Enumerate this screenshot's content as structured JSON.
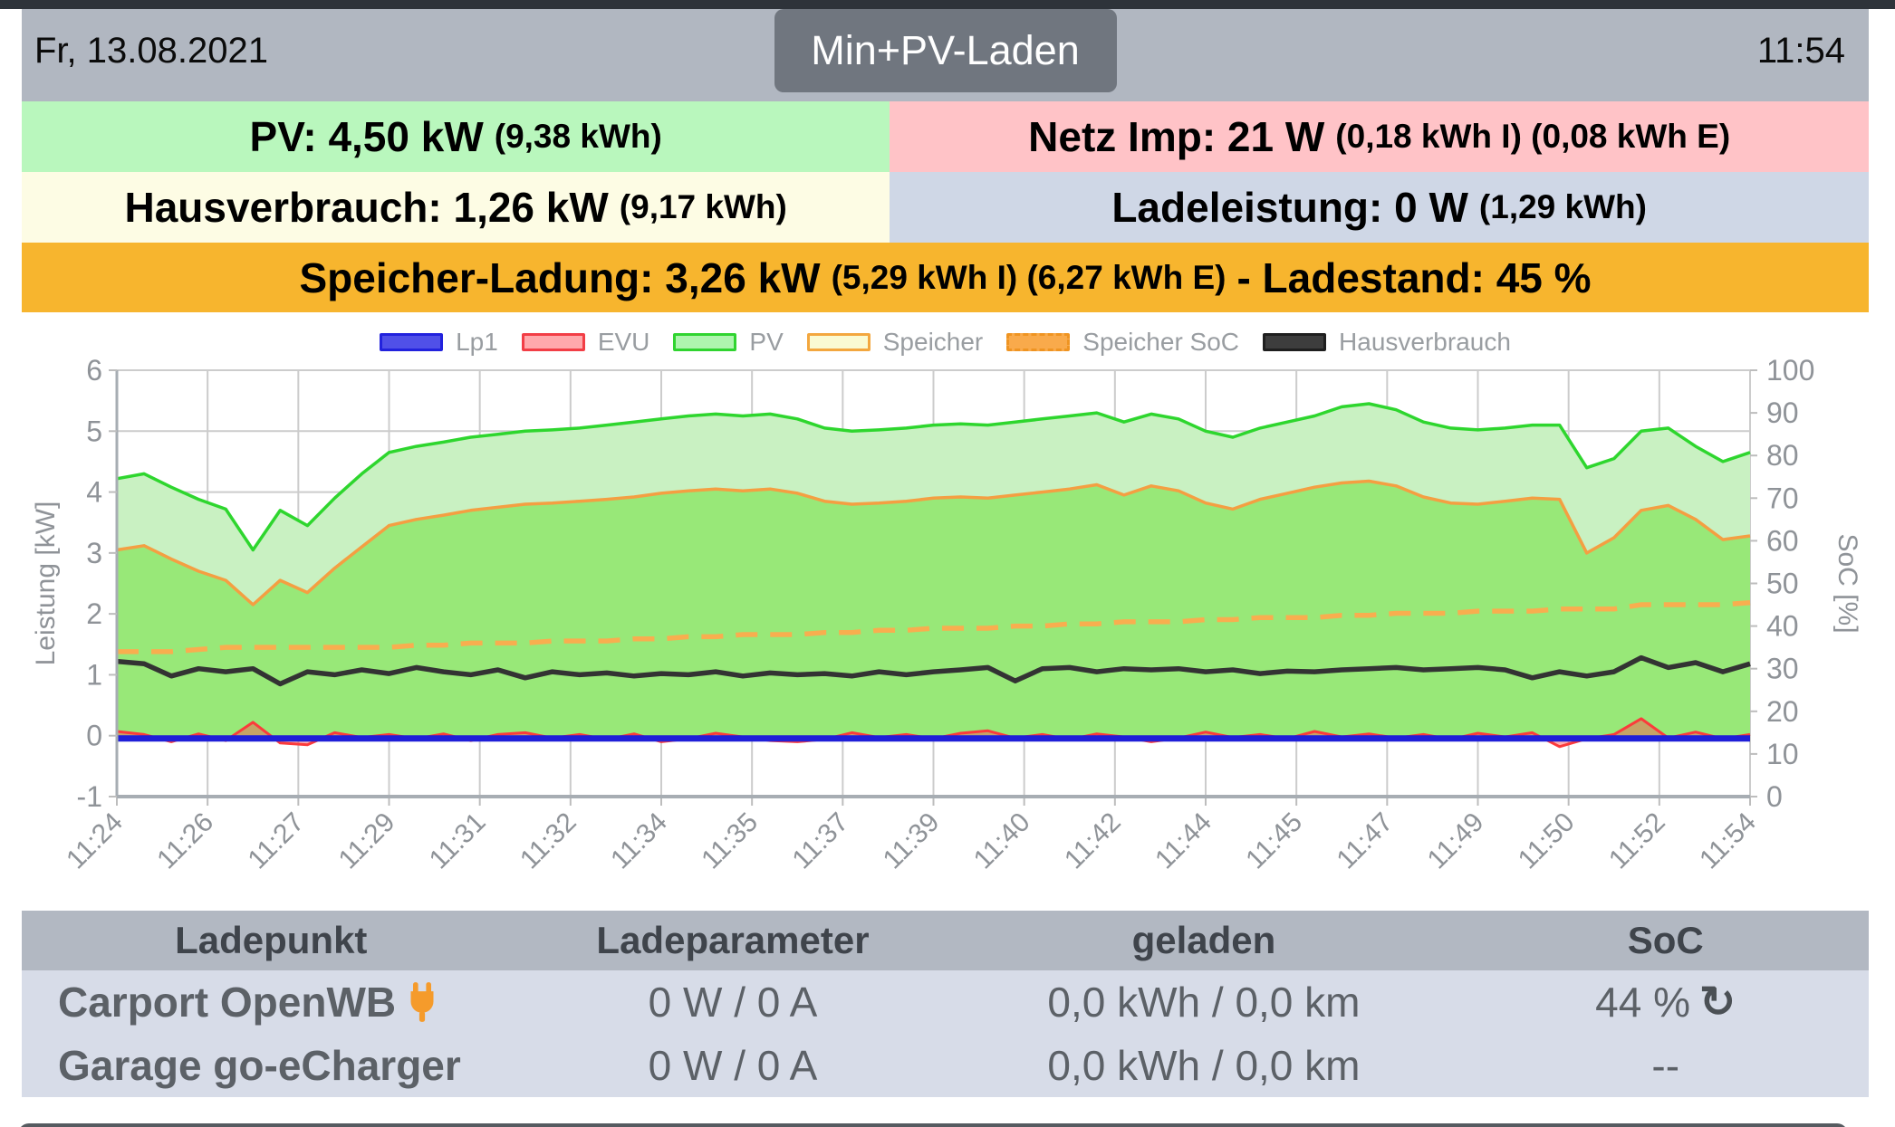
{
  "header": {
    "date": "Fr, 13.08.2021",
    "time": "11:54",
    "mode_button": "Min+PV-Laden"
  },
  "stats": {
    "pv": {
      "bold": "PV: 4,50 kW",
      "small": "(9,38 kWh)",
      "bg": "#b9f7bd"
    },
    "netz": {
      "bold": "Netz Imp: 21 W",
      "small": "(0,18 kWh I) (0,08 kWh E)",
      "bg": "#ffc3c7"
    },
    "haus": {
      "bold": "Hausverbrauch: 1,26 kW",
      "small": "(9,17 kWh)",
      "bg": "#fdfce4"
    },
    "lade": {
      "bold": "Ladeleistung: 0 W",
      "small": "(1,29 kWh)",
      "bg": "#cfd7e6"
    },
    "speicher": {
      "bold": "Speicher-Ladung: 3,26 kW",
      "small": "(5,29 kWh I) (6,27 kWh E)",
      "bold2": "- Ladestand: 45 %",
      "bg": "#f7b52e"
    }
  },
  "chart_data": {
    "type": "area",
    "x_tick_labels": [
      "11:24",
      "11:26",
      "11:27",
      "11:29",
      "11:31",
      "11:32",
      "11:34",
      "11:35",
      "11:37",
      "11:39",
      "11:40",
      "11:42",
      "11:44",
      "11:45",
      "11:47",
      "11:49",
      "11:50",
      "11:52",
      "11:54"
    ],
    "ylabel_left": "Leistung [kW]",
    "ylim_left": [
      -1,
      6
    ],
    "ylabel_right": "SoC [%]",
    "ylim_right": [
      0,
      100
    ],
    "grid": true,
    "legend_position": "top",
    "legend": [
      {
        "label": "Lp1",
        "fill": "#5050e8",
        "border": "#2222dd",
        "dashed": false
      },
      {
        "label": "EVU",
        "fill": "#ffa9ac",
        "border": "#f23e46",
        "dashed": false
      },
      {
        "label": "PV",
        "fill": "#aef5ae",
        "border": "#30d430",
        "dashed": false
      },
      {
        "label": "Speicher",
        "fill": "#fafad2",
        "border": "#f3a73f",
        "dashed": false
      },
      {
        "label": "Speicher SoC",
        "fill": "#f9aa4b",
        "border": "#ef9422",
        "dashed": true
      },
      {
        "label": "Hausverbrauch",
        "fill": "#3d3d3d",
        "border": "#1f1f1f",
        "dashed": false
      }
    ],
    "colors": {
      "pv_line": "#2ed62e",
      "pv_fill": "#c9f1c2",
      "speicher_line": "#f49f42",
      "speicher_fill": "#98e878",
      "soc_line": "#f8ae4f",
      "haus_line": "#333333",
      "evu_line": "#fb3b3b",
      "evu_fill": "#ff5050",
      "lp1_line": "#1f1fd8",
      "grid_color": "#cccccc",
      "axis_color": "#a7adb3",
      "axis_text": "#8f9398"
    },
    "series": {
      "pv": [
        4.22,
        4.3,
        4.08,
        3.88,
        3.72,
        3.05,
        3.7,
        3.45,
        3.9,
        4.3,
        4.65,
        4.75,
        4.82,
        4.9,
        4.95,
        5.0,
        5.02,
        5.05,
        5.1,
        5.15,
        5.2,
        5.25,
        5.28,
        5.25,
        5.28,
        5.2,
        5.05,
        5.0,
        5.02,
        5.05,
        5.1,
        5.12,
        5.1,
        5.15,
        5.2,
        5.25,
        5.3,
        5.15,
        5.28,
        5.2,
        5.0,
        4.9,
        5.05,
        5.15,
        5.25,
        5.4,
        5.45,
        5.35,
        5.15,
        5.05,
        5.02,
        5.05,
        5.1,
        5.1,
        4.4,
        4.55,
        5.0,
        5.05,
        4.75,
        4.5,
        4.65
      ],
      "speicher": [
        3.05,
        3.12,
        2.9,
        2.7,
        2.55,
        2.15,
        2.55,
        2.35,
        2.75,
        3.1,
        3.45,
        3.55,
        3.62,
        3.7,
        3.75,
        3.8,
        3.82,
        3.85,
        3.88,
        3.92,
        3.98,
        4.02,
        4.05,
        4.02,
        4.05,
        3.98,
        3.85,
        3.8,
        3.82,
        3.85,
        3.9,
        3.92,
        3.9,
        3.95,
        4.0,
        4.05,
        4.12,
        3.95,
        4.1,
        4.02,
        3.82,
        3.72,
        3.88,
        3.98,
        4.08,
        4.15,
        4.18,
        4.1,
        3.92,
        3.82,
        3.8,
        3.85,
        3.9,
        3.88,
        3.0,
        3.25,
        3.7,
        3.78,
        3.55,
        3.22,
        3.28
      ],
      "hausverbrauch": [
        1.22,
        1.18,
        0.98,
        1.1,
        1.05,
        1.1,
        0.85,
        1.05,
        1.0,
        1.08,
        1.02,
        1.12,
        1.05,
        1.0,
        1.08,
        0.95,
        1.05,
        1.0,
        1.03,
        0.98,
        1.02,
        1.0,
        1.05,
        0.98,
        1.03,
        1.0,
        1.02,
        0.98,
        1.05,
        1.0,
        1.05,
        1.08,
        1.12,
        0.9,
        1.1,
        1.12,
        1.05,
        1.1,
        1.08,
        1.1,
        1.05,
        1.08,
        1.02,
        1.06,
        1.05,
        1.08,
        1.1,
        1.12,
        1.08,
        1.1,
        1.12,
        1.08,
        0.95,
        1.05,
        0.98,
        1.05,
        1.28,
        1.12,
        1.2,
        1.05,
        1.18
      ],
      "evu": [
        0.07,
        0.02,
        -0.1,
        0.03,
        -0.08,
        0.22,
        -0.12,
        -0.15,
        0.05,
        -0.03,
        0.02,
        -0.05,
        0.03,
        -0.08,
        0.02,
        0.05,
        -0.04,
        0.02,
        -0.06,
        0.03,
        -0.1,
        -0.05,
        0.04,
        -0.02,
        -0.08,
        -0.1,
        -0.06,
        0.05,
        -0.03,
        0.02,
        -0.05,
        0.04,
        0.08,
        -0.04,
        0.02,
        -0.06,
        0.03,
        -0.02,
        -0.1,
        -0.04,
        0.06,
        -0.03,
        0.02,
        -0.05,
        0.07,
        -0.02,
        0.03,
        -0.04,
        0.02,
        -0.06,
        0.04,
        -0.02,
        0.05,
        -0.18,
        -0.05,
        0.02,
        0.28,
        -0.04,
        0.06,
        -0.05,
        0.02
      ],
      "lp1": {
        "constant": 0
      },
      "speicher_soc": [
        34,
        34,
        34,
        34.5,
        35,
        35,
        35,
        35,
        35,
        35,
        35,
        35.5,
        35.5,
        36,
        36,
        36,
        36.5,
        36.5,
        36.5,
        37,
        37,
        37.5,
        37.5,
        38,
        38,
        38,
        38.5,
        38.5,
        39,
        39,
        39.5,
        39.5,
        39.5,
        40,
        40,
        40.5,
        40.5,
        41,
        41,
        41,
        41.5,
        41.5,
        42,
        42,
        42,
        42.5,
        42.5,
        43,
        43,
        43,
        43.5,
        43.5,
        43.5,
        44,
        44,
        44,
        45,
        45,
        45,
        45,
        45.5
      ]
    }
  },
  "table": {
    "headers": [
      "Ladepunkt",
      "Ladeparameter",
      "geladen",
      "SoC"
    ],
    "rows": [
      {
        "name": "Carport OpenWB",
        "params": "0 W / 0 A",
        "charged": "0,0 kWh / 0,0 km",
        "soc": "44 %",
        "has_plug": true,
        "has_refresh": true
      },
      {
        "name": "Garage go-eCharger",
        "params": "0 W / 0 A",
        "charged": "0,0 kWh / 0,0 km",
        "soc": "--",
        "has_plug": false,
        "has_refresh": false
      }
    ],
    "name_color": "#117a11",
    "plug_icon_color": "#f59b2b",
    "refresh_glyph": "↻"
  }
}
